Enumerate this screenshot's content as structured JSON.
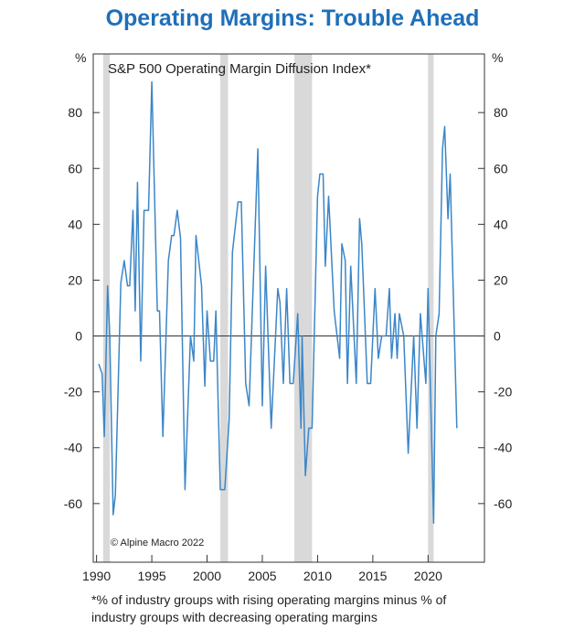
{
  "chart_data": {
    "type": "line",
    "title": "Operating Margins: Trouble Ahead",
    "subtitle": "S&P 500 Operating Margin Diffusion Index*",
    "ylabel_left": "%",
    "ylabel_right": "%",
    "xlim": [
      1989.7,
      2025.1
    ],
    "ylim": [
      -81,
      101
    ],
    "xticks": [
      1990,
      1995,
      2000,
      2005,
      2010,
      2015,
      2020
    ],
    "yticks": [
      -60,
      -40,
      -20,
      0,
      20,
      40,
      60,
      80
    ],
    "grid": false,
    "zero_line": true,
    "line_color": "#3b86c8",
    "recession_color": "#d9d9d9",
    "recessions": [
      [
        1990.6,
        1991.2
      ],
      [
        2001.2,
        2001.9
      ],
      [
        2007.9,
        2009.5
      ],
      [
        2020.0,
        2020.5
      ]
    ],
    "series": [
      {
        "x": [
          1990.2,
          1990.5,
          1990.7,
          1991.0,
          1991.2,
          1991.5,
          1991.7,
          1992.2,
          1992.5,
          1992.8,
          1993.0,
          1993.3,
          1993.5,
          1993.7,
          1994.0,
          1994.3,
          1994.7,
          1995.0,
          1995.5,
          1995.7,
          1996.0,
          1996.5,
          1996.8,
          1997.0,
          1997.3,
          1997.6,
          1998.0,
          1998.5,
          1998.8,
          1999.0,
          1999.5,
          1999.8,
          2000.0,
          2000.3,
          2000.6,
          2000.8,
          2001.2,
          2001.6,
          2002.0,
          2002.3,
          2002.8,
          2003.1,
          2003.5,
          2003.8,
          2004.6,
          2005.0,
          2005.3,
          2005.8,
          2006.4,
          2006.6,
          2006.9,
          2007.2,
          2007.5,
          2007.8,
          2008.2,
          2008.5,
          2008.6,
          2008.9,
          2009.2,
          2009.5,
          2010.0,
          2010.2,
          2010.5,
          2010.7,
          2011.0,
          2011.5,
          2012.0,
          2012.2,
          2012.5,
          2012.7,
          2013.0,
          2013.5,
          2013.8,
          2014.0,
          2014.5,
          2014.8,
          2015.2,
          2015.5,
          2015.8,
          2016.2,
          2016.5,
          2016.7,
          2017.0,
          2017.2,
          2017.4,
          2017.8,
          2018.2,
          2018.7,
          2019.0,
          2019.3,
          2019.8,
          2020.0,
          2020.5,
          2020.7,
          2021.0,
          2021.3,
          2021.5,
          2021.8,
          2022.0,
          2022.6
        ],
        "y": [
          -10,
          -13.5,
          -36,
          18,
          0,
          -64,
          -57,
          19,
          27,
          18,
          18,
          45,
          9,
          55,
          -9,
          45,
          45,
          91,
          9,
          9,
          -36,
          27,
          36,
          36,
          45,
          35,
          -55,
          0,
          -9,
          36,
          18,
          -18,
          9,
          -9,
          -9,
          9,
          -55,
          -55,
          -30,
          30,
          48,
          48,
          -17,
          -25,
          67,
          -25,
          25,
          -33,
          17,
          12,
          -17,
          17,
          -17,
          -17,
          8,
          -33,
          0,
          -50,
          -33,
          -33,
          50,
          58,
          58,
          25,
          50,
          9,
          -8,
          33,
          27,
          -17,
          25,
          -17,
          42,
          33,
          -17,
          -17,
          17,
          -8,
          0,
          0,
          17,
          -8,
          8,
          -8,
          8,
          0,
          -42,
          0,
          -33,
          8,
          -17,
          17,
          -67,
          0,
          8,
          67,
          75,
          42,
          58,
          -33
        ]
      }
    ],
    "annotation": "© Alpine Macro 2022"
  },
  "footnote": [
    "*% of industry groups with rising operating margins minus % of",
    "industry groups with decreasing operating margins"
  ]
}
